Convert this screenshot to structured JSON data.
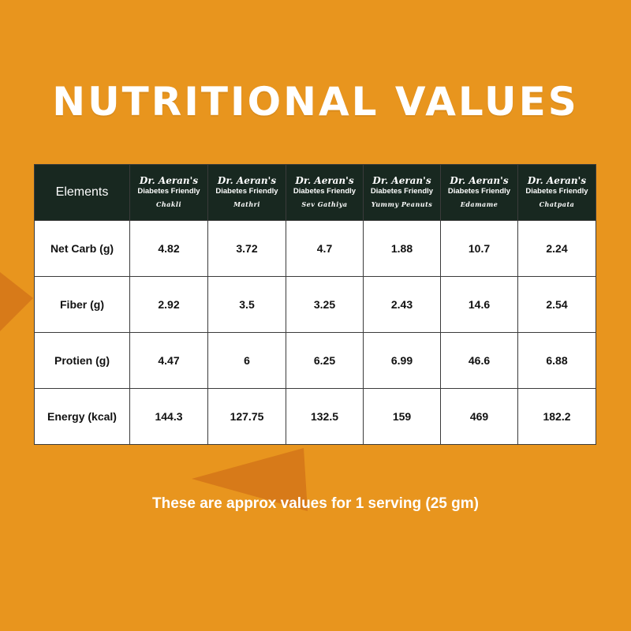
{
  "colors": {
    "background": "#E8951E",
    "header_bg": "#182820",
    "decor": "#D77A19",
    "text_light": "#FFFFFF",
    "text_dark": "#111111"
  },
  "title": "NUTRITIONAL VALUES",
  "table": {
    "first_header": "Elements",
    "products": [
      {
        "line1": "Dr. Aeran's",
        "line2": "Diabetes Friendly",
        "name": "Chakli"
      },
      {
        "line1": "Dr. Aeran's",
        "line2": "Diabetes Friendly",
        "name": "Mathri"
      },
      {
        "line1": "Dr. Aeran's",
        "line2": "Diabetes Friendly",
        "name": "Sev Gathiya"
      },
      {
        "line1": "Dr. Aeran's",
        "line2": "Diabetes Friendly",
        "name": "Yummy Peanuts"
      },
      {
        "line1": "Dr. Aeran's",
        "line2": "Diabetes Friendly",
        "name": "Edamame"
      },
      {
        "line1": "Dr. Aeran's",
        "line2": "Diabetes Friendly",
        "name": "Chatpata"
      }
    ],
    "rows": [
      {
        "label": "Net Carb (g)",
        "values": [
          "4.82",
          "3.72",
          "4.7",
          "1.88",
          "10.7",
          "2.24"
        ]
      },
      {
        "label": "Fiber (g)",
        "values": [
          "2.92",
          "3.5",
          "3.25",
          "2.43",
          "14.6",
          "2.54"
        ]
      },
      {
        "label": "Protien (g)",
        "values": [
          "4.47",
          "6",
          "6.25",
          "6.99",
          "46.6",
          "6.88"
        ]
      },
      {
        "label": "Energy (kcal)",
        "values": [
          "144.3",
          "127.75",
          "132.5",
          "159",
          "469",
          "182.2"
        ]
      }
    ]
  },
  "footnote": "These are approx values for 1 serving (25 gm)"
}
